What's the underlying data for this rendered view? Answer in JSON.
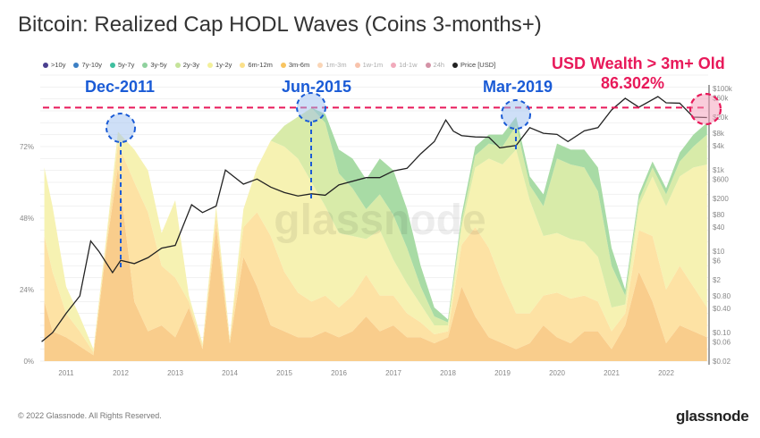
{
  "title": "Bitcoin: Realized Cap HODL Waves (Coins 3-months+)",
  "legend": [
    {
      "label": ">10y",
      "color": "#4a3f8f",
      "faded": false
    },
    {
      "label": "7y-10y",
      "color": "#3b7fc4",
      "faded": false
    },
    {
      "label": "5y-7y",
      "color": "#3fbf9f",
      "faded": false
    },
    {
      "label": "3y-5y",
      "color": "#8fd19e",
      "faded": false
    },
    {
      "label": "2y-3y",
      "color": "#c5e39a",
      "faded": false
    },
    {
      "label": "1y-2y",
      "color": "#f3f09a",
      "faded": false
    },
    {
      "label": "6m-12m",
      "color": "#fbe08a",
      "faded": false
    },
    {
      "label": "3m-6m",
      "color": "#f8c460",
      "faded": false
    },
    {
      "label": "1m-3m",
      "color": "#f4a460",
      "faded": true
    },
    {
      "label": "1w-1m",
      "color": "#f07c4a",
      "faded": true
    },
    {
      "label": "1d-1w",
      "color": "#e2456a",
      "faded": true
    },
    {
      "label": "24h",
      "color": "#a0103c",
      "faded": true
    },
    {
      "label": "Price [USD]",
      "color": "#222222",
      "faded": false
    }
  ],
  "annotations": {
    "dec2011": "Dec-2011",
    "jun2015": "Jun-2015",
    "mar2019": "Mar-2019",
    "wealth_label": "USD Wealth > 3m+ Old",
    "wealth_value": "86.302%"
  },
  "footer": "© 2022 Glassnode. All Rights Reserved.",
  "logo": "glassnode",
  "watermark": "glassnode",
  "chart_data": {
    "type": "area",
    "title": "Bitcoin: Realized Cap HODL Waves (Coins 3-months+)",
    "x_ticks": [
      "2011",
      "2012",
      "2013",
      "2014",
      "2015",
      "2016",
      "2017",
      "2018",
      "2019",
      "2020",
      "2021",
      "2022"
    ],
    "y_left_ticks": [
      "0%",
      "24%",
      "48%",
      "72%"
    ],
    "y_left_range": [
      0,
      100
    ],
    "y_right_ticks": [
      "$100k",
      "$60k",
      "$20k",
      "$8k",
      "$4k",
      "$1k",
      "$600",
      "$200",
      "$80",
      "$40",
      "$10",
      "$6",
      "$2",
      "$0.80",
      "$0.40",
      "$0.10",
      "$0.06",
      "$0.02"
    ],
    "y_right_values": [
      100000,
      60000,
      20000,
      8000,
      4000,
      1000,
      600,
      200,
      80,
      40,
      10,
      6,
      2,
      0.8,
      0.4,
      0.1,
      0.06,
      0.02
    ],
    "y_right_scale": "log",
    "reference_line_pct": 86.302,
    "x": [
      2010.6,
      2010.75,
      2011.0,
      2011.25,
      2011.5,
      2011.75,
      2011.95,
      2012.25,
      2012.5,
      2012.75,
      2013.0,
      2013.25,
      2013.5,
      2013.75,
      2014.0,
      2014.25,
      2014.5,
      2014.75,
      2015.0,
      2015.25,
      2015.5,
      2015.75,
      2016.0,
      2016.25,
      2016.5,
      2016.75,
      2017.0,
      2017.25,
      2017.5,
      2017.75,
      2018.0,
      2018.25,
      2018.5,
      2018.75,
      2019.0,
      2019.25,
      2019.5,
      2019.75,
      2020.0,
      2020.25,
      2020.5,
      2020.75,
      2021.0,
      2021.25,
      2021.5,
      2021.75,
      2022.0,
      2022.25,
      2022.5,
      2022.75
    ],
    "series": [
      {
        "name": "3m-6m",
        "color": "#f9cd8c",
        "values": [
          20,
          10,
          8,
          5,
          2,
          40,
          65,
          20,
          10,
          12,
          8,
          18,
          4,
          45,
          6,
          35,
          25,
          12,
          10,
          8,
          8,
          10,
          8,
          10,
          15,
          10,
          12,
          8,
          8,
          6,
          8,
          25,
          15,
          8,
          6,
          4,
          6,
          12,
          8,
          6,
          10,
          10,
          4,
          12,
          30,
          20,
          6,
          12,
          10,
          8
        ]
      },
      {
        "name": "6m-12m",
        "color": "#fde2a4",
        "values": [
          22,
          20,
          8,
          5,
          1,
          2,
          8,
          40,
          40,
          20,
          20,
          2,
          1,
          4,
          1,
          10,
          25,
          30,
          20,
          15,
          12,
          12,
          10,
          12,
          14,
          12,
          10,
          8,
          5,
          3,
          2,
          14,
          30,
          30,
          20,
          12,
          10,
          10,
          15,
          15,
          12,
          10,
          6,
          4,
          14,
          22,
          18,
          20,
          15,
          10
        ]
      },
      {
        "name": "1y-2y",
        "color": "#f6f2b2",
        "values": [
          23,
          22,
          9,
          5,
          1,
          2,
          4,
          11,
          14,
          11,
          26,
          2,
          1,
          3,
          1,
          6,
          15,
          32,
          42,
          45,
          40,
          30,
          25,
          20,
          12,
          22,
          12,
          10,
          6,
          3,
          2,
          6,
          20,
          30,
          40,
          55,
          38,
          20,
          20,
          20,
          18,
          15,
          8,
          3,
          8,
          20,
          28,
          30,
          40,
          48
        ]
      },
      {
        "name": "2y-3y",
        "color": "#d8eba9",
        "values": [
          0,
          0,
          0,
          0,
          0,
          0,
          0,
          0,
          0,
          0,
          0,
          0,
          0,
          0,
          0,
          0,
          0,
          0,
          7,
          14,
          25,
          28,
          20,
          16,
          10,
          12,
          15,
          12,
          6,
          3,
          1,
          2,
          4,
          5,
          6,
          8,
          5,
          10,
          25,
          25,
          25,
          22,
          14,
          3,
          2,
          3,
          4,
          5,
          7,
          10
        ]
      },
      {
        "name": "3y-5y",
        "color": "#a8dba5",
        "values": [
          0,
          0,
          0,
          0,
          0,
          0,
          0,
          0,
          0,
          0,
          0,
          0,
          0,
          0,
          0,
          0,
          0,
          0,
          0,
          0,
          0,
          3,
          8,
          10,
          10,
          12,
          15,
          13,
          7,
          3,
          1,
          2,
          3,
          3,
          4,
          3,
          3,
          4,
          5,
          5,
          6,
          8,
          6,
          2,
          2,
          2,
          2,
          3,
          4,
          4
        ]
      }
    ],
    "price": {
      "name": "Price [USD]",
      "x": [
        2010.55,
        2010.75,
        2011.0,
        2011.25,
        2011.45,
        2011.6,
        2011.85,
        2012.0,
        2012.25,
        2012.5,
        2012.75,
        2013.0,
        2013.3,
        2013.5,
        2013.75,
        2013.92,
        2014.25,
        2014.5,
        2014.75,
        2015.0,
        2015.25,
        2015.5,
        2015.75,
        2016.0,
        2016.5,
        2016.75,
        2017.0,
        2017.25,
        2017.5,
        2017.75,
        2017.96,
        2018.1,
        2018.25,
        2018.5,
        2018.75,
        2018.95,
        2019.25,
        2019.5,
        2019.75,
        2020.0,
        2020.2,
        2020.5,
        2020.75,
        2021.0,
        2021.25,
        2021.5,
        2021.85,
        2022.0,
        2022.25,
        2022.5,
        2022.75
      ],
      "values": [
        0.06,
        0.1,
        0.3,
        0.8,
        18,
        10,
        3,
        6,
        5,
        7,
        12,
        14,
        140,
        90,
        130,
        1000,
        450,
        600,
        380,
        280,
        230,
        260,
        240,
        430,
        650,
        650,
        950,
        1100,
        2500,
        5000,
        17000,
        9000,
        7000,
        6500,
        6400,
        3500,
        4000,
        11000,
        8000,
        7500,
        5000,
        9200,
        11000,
        30000,
        58000,
        35000,
        64000,
        45000,
        44000,
        20000,
        19500
      ]
    }
  }
}
